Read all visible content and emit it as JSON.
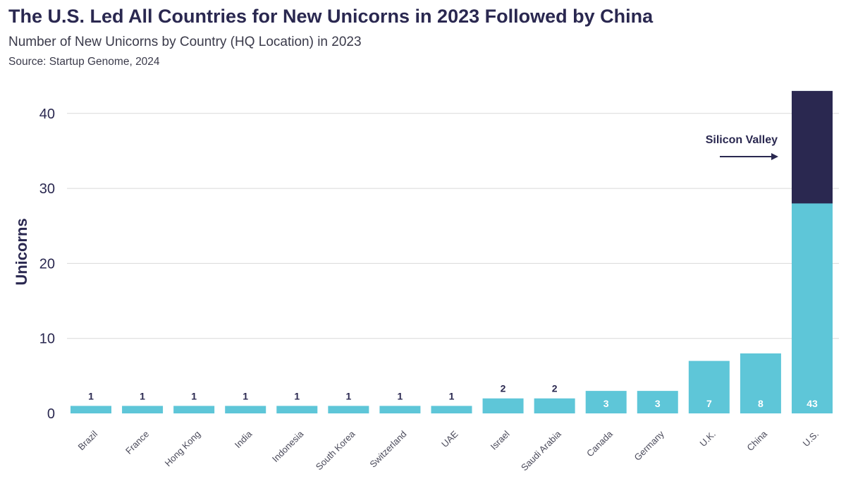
{
  "header": {
    "title": "The U.S. Led All Countries for New Unicorns in 2023 Followed by China",
    "subtitle": "Number of New Unicorns by Country (HQ Location) in 2023",
    "source": "Source: Startup Genome, 2024"
  },
  "chart_data": {
    "type": "bar",
    "title": "The U.S. Led All Countries for New Unicorns in 2023 Followed by China",
    "subtitle": "Number of New Unicorns by Country (HQ Location) in 2023",
    "xlabel": "",
    "ylabel": "Unicorns",
    "ylim": [
      0,
      43
    ],
    "yticks": [
      0,
      10,
      20,
      30,
      40
    ],
    "grid": true,
    "categories": [
      "Brazil",
      "France",
      "Hong Kong",
      "India",
      "Indonesia",
      "South Korea",
      "Switzerland",
      "UAE",
      "Israel",
      "Saudi Arabia",
      "Canada",
      "Germany",
      "U.K.",
      "China",
      "U.S."
    ],
    "values": [
      1,
      1,
      1,
      1,
      1,
      1,
      1,
      1,
      2,
      2,
      3,
      3,
      7,
      8,
      43
    ],
    "data_labels": [
      "1",
      "1",
      "1",
      "1",
      "1",
      "1",
      "1",
      "1",
      "2",
      "2",
      "3",
      "3",
      "7",
      "8",
      "43"
    ],
    "highlight": {
      "category": "U.S.",
      "label": "Silicon Valley",
      "value": 15
    },
    "colors": {
      "bar": "#5ec6d8",
      "highlight": "#2a2850",
      "grid": "#d9d9d9",
      "label_outside": "#2a2850",
      "label_inside": "#ffffff"
    }
  }
}
